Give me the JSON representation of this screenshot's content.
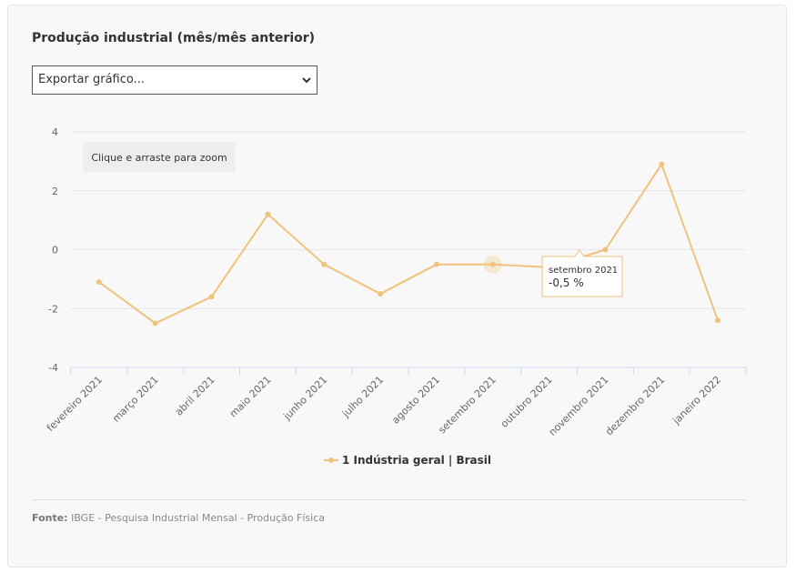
{
  "title": "Produção industrial (mês/mês anterior)",
  "export": {
    "label": "Exportar gráfico..."
  },
  "zoom_hint": "Clique e arraste para zoom",
  "tooltip": {
    "date": "setembro 2021",
    "value": "-0,5 %"
  },
  "source": {
    "label": "Fonte:",
    "text": " IBGE - Pesquisa Industrial Mensal - Produção Física"
  },
  "chart_data": {
    "type": "line",
    "categories": [
      "fevereiro 2021",
      "março 2021",
      "abril 2021",
      "maio 2021",
      "junho 2021",
      "julho 2021",
      "agosto 2021",
      "setembro 2021",
      "outubro 2021",
      "novembro 2021",
      "dezembro 2021",
      "janeiro 2022"
    ],
    "series": [
      {
        "name": "1 Indústria geral | Brasil",
        "values": [
          -1.1,
          -2.5,
          -1.6,
          1.2,
          -0.5,
          -1.5,
          -0.5,
          -0.5,
          -0.6,
          0.0,
          2.9,
          -2.4
        ],
        "color": "#f0c27b"
      }
    ],
    "yticks": [
      "4",
      "2",
      "0",
      "-2",
      "-4"
    ],
    "ytick_values": [
      4,
      2,
      0,
      -2,
      -4
    ],
    "ylim": [
      -4,
      4
    ],
    "grid": true,
    "legend": "bottom-center",
    "highlighted_index": 7
  }
}
